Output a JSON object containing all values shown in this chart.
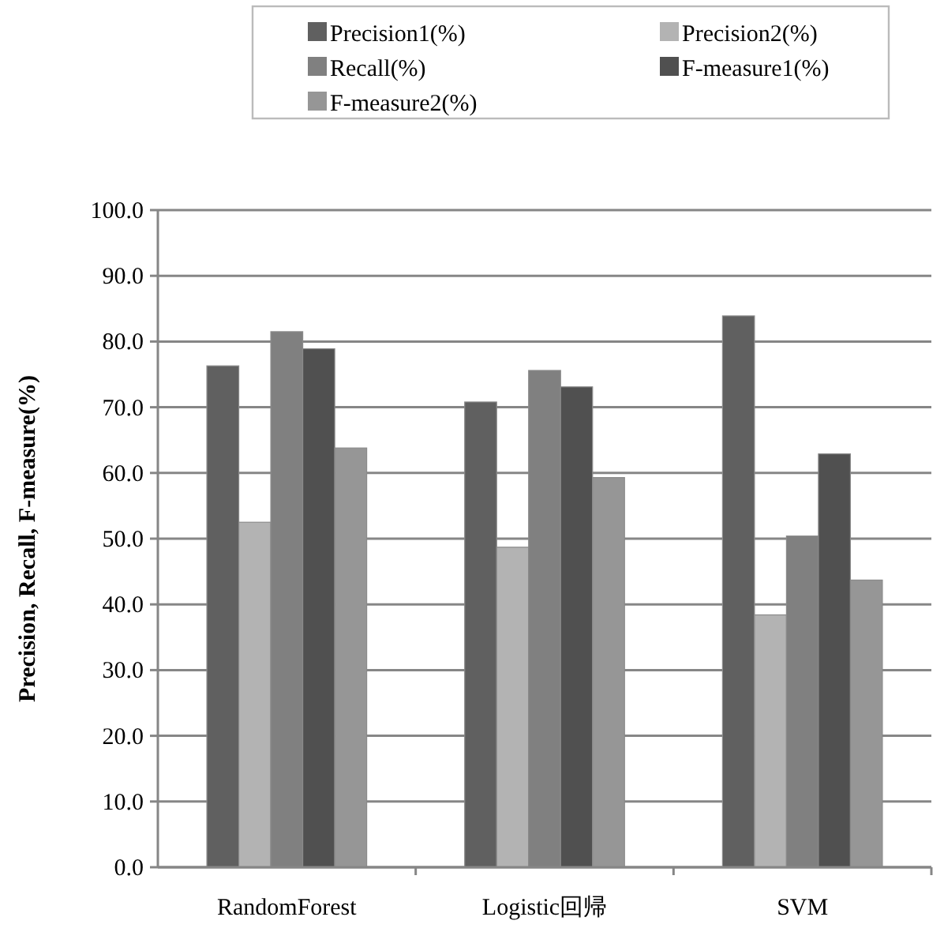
{
  "chart_data": {
    "type": "bar",
    "ylabel": "Precision, Recall, F-measure(%)",
    "categories": [
      "RandomForest",
      "Logistic回帰",
      "SVM"
    ],
    "series": [
      {
        "name": "Precision1(%)",
        "color": "#606060",
        "values": [
          76.3,
          70.8,
          83.9
        ]
      },
      {
        "name": "Precision2(%)",
        "color": "#b3b3b3",
        "values": [
          52.5,
          48.7,
          38.4
        ]
      },
      {
        "name": "Recall(%)",
        "color": "#808080",
        "values": [
          81.5,
          75.6,
          50.4
        ]
      },
      {
        "name": "F-measure1(%)",
        "color": "#505050",
        "values": [
          78.9,
          73.1,
          62.9
        ]
      },
      {
        "name": "F-measure2(%)",
        "color": "#969696",
        "values": [
          63.8,
          59.3,
          43.7
        ]
      }
    ],
    "ylim": [
      0,
      100
    ],
    "yticks": [
      {
        "value": 0,
        "label": "0.0"
      },
      {
        "value": 10,
        "label": "10.0"
      },
      {
        "value": 20,
        "label": "20.0"
      },
      {
        "value": 30,
        "label": "30.0"
      },
      {
        "value": 40,
        "label": "40.0"
      },
      {
        "value": 50,
        "label": "50.0"
      },
      {
        "value": 60,
        "label": "60.0"
      },
      {
        "value": 70,
        "label": "70.0"
      },
      {
        "value": 80,
        "label": "80.0"
      },
      {
        "value": 90,
        "label": "90.0"
      },
      {
        "value": 100,
        "label": "100.0"
      }
    ],
    "grid": "y",
    "legend": "top"
  }
}
